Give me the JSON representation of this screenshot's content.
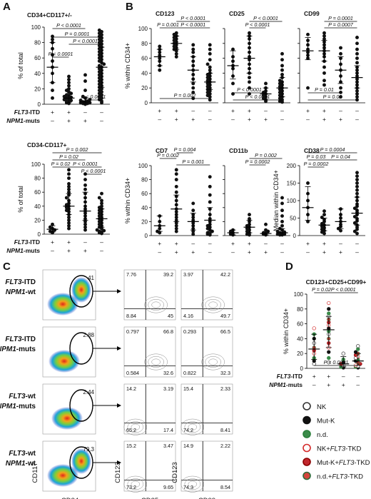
{
  "panel_letters": {
    "a": "A",
    "b": "B",
    "c": "C",
    "d": "D"
  },
  "row_labels": {
    "flt3": "FLT3",
    "itd": "-ITD",
    "npm1": "NPM1",
    "muts": "-muts",
    "plus": "+",
    "minus": "–"
  },
  "groups_signs": {
    "flt3_itd": [
      "+",
      "+",
      "–",
      "–"
    ],
    "npm1_muts": [
      "–",
      "+",
      "+",
      "–"
    ]
  },
  "chart_data": [
    {
      "id": "a_top",
      "type": "scatter",
      "title": "CD34+CD117+/-",
      "ylabel": "% of total",
      "ylim": [
        0,
        100
      ],
      "yticks": [
        0,
        20,
        40,
        60,
        80,
        100
      ],
      "groups": [
        {
          "median": 48,
          "iqr": [
            28,
            80
          ],
          "values": [
            8,
            18,
            28,
            40,
            48,
            56,
            64,
            72,
            80,
            84,
            88
          ]
        },
        {
          "median": 8,
          "iqr": [
            2,
            14
          ],
          "values": [
            1,
            2,
            3,
            4,
            5,
            6,
            7,
            8,
            9,
            10,
            11,
            12,
            14,
            16,
            18,
            20,
            24,
            28,
            32,
            36
          ]
        },
        {
          "median": 3,
          "iqr": [
            1,
            8
          ],
          "values": [
            0,
            1,
            1,
            2,
            2,
            3,
            3,
            4,
            5,
            6,
            8,
            10,
            18,
            30,
            38
          ]
        },
        {
          "median": 48,
          "iqr": [
            22,
            74
          ],
          "values": [
            2,
            4,
            6,
            8,
            10,
            12,
            14,
            16,
            18,
            20,
            22,
            24,
            26,
            28,
            30,
            32,
            34,
            36,
            38,
            40,
            42,
            44,
            46,
            48,
            50,
            52,
            54,
            56,
            58,
            60,
            62,
            64,
            66,
            68,
            70,
            72,
            74,
            76,
            78,
            80,
            82,
            84,
            86,
            88,
            90,
            92,
            94,
            96
          ]
        }
      ],
      "p_values": [
        "P < 0.0001",
        "P = 0.0001",
        "P < 0.0001",
        "P < 0.0001",
        "P < 0.0001"
      ]
    },
    {
      "id": "a_bottom",
      "type": "scatter",
      "title": "CD34-CD117+",
      "ylabel": "% of total",
      "ylim": [
        0,
        100
      ],
      "yticks": [
        0,
        20,
        40,
        60,
        80,
        100
      ],
      "groups": [
        {
          "median": 7,
          "iqr": [
            3,
            12
          ],
          "values": [
            2,
            3,
            4,
            6,
            8,
            10,
            14
          ]
        },
        {
          "median": 40,
          "iqr": [
            28,
            58
          ],
          "values": [
            8,
            12,
            16,
            20,
            24,
            28,
            32,
            34,
            36,
            38,
            40,
            42,
            44,
            48,
            52,
            56,
            60,
            64,
            68,
            72,
            80,
            86,
            92
          ]
        },
        {
          "median": 33,
          "iqr": [
            20,
            60
          ],
          "values": [
            6,
            10,
            14,
            18,
            22,
            26,
            30,
            33,
            36,
            40,
            46,
            52,
            58,
            64,
            70,
            78,
            86
          ]
        },
        {
          "median": 22,
          "iqr": [
            10,
            36
          ],
          "values": [
            1,
            2,
            3,
            4,
            5,
            6,
            8,
            10,
            12,
            14,
            16,
            18,
            20,
            22,
            24,
            26,
            28,
            30,
            32,
            34,
            36,
            38,
            40,
            44,
            48,
            52,
            58
          ]
        }
      ],
      "p_values": [
        "P = 0.002",
        "P = 0.02",
        "P = 0.02",
        "P < 0.0001",
        "P < 0.0001"
      ]
    },
    {
      "id": "b_cd123",
      "type": "scatter",
      "title": "CD123",
      "ylabel": "% within CD34+",
      "ylim": [
        0,
        100
      ],
      "yticks": [
        0,
        20,
        40,
        60,
        80,
        100
      ],
      "groups": [
        {
          "median": 62,
          "iqr": [
            50,
            72
          ],
          "values": [
            44,
            50,
            56,
            60,
            64,
            68,
            72,
            76
          ]
        },
        {
          "median": 80,
          "iqr": [
            72,
            90
          ],
          "values": [
            62,
            66,
            70,
            72,
            74,
            76,
            78,
            80,
            82,
            84,
            86,
            88,
            90,
            92,
            94
          ]
        },
        {
          "median": 44,
          "iqr": [
            28,
            62
          ],
          "values": [
            6,
            14,
            20,
            26,
            32,
            38,
            44,
            50,
            56,
            62,
            68,
            72,
            78
          ]
        },
        {
          "median": 28,
          "iqr": [
            18,
            40
          ],
          "values": [
            4,
            8,
            10,
            12,
            14,
            16,
            18,
            20,
            22,
            24,
            26,
            28,
            30,
            32,
            34,
            36,
            38,
            40,
            44,
            48,
            52,
            58,
            66,
            72,
            78
          ]
        }
      ],
      "p_values": [
        "P < 0.0001",
        "P = 0.001",
        "P < 0.0001",
        "P = 0.002"
      ]
    },
    {
      "id": "b_cd25",
      "type": "scatter",
      "title": "CD25",
      "ylim": [
        0,
        100
      ],
      "groups": [
        {
          "median": 50,
          "iqr": [
            32,
            70
          ],
          "values": [
            12,
            26,
            36,
            46,
            50,
            56,
            62,
            72
          ]
        },
        {
          "median": 60,
          "iqr": [
            40,
            90
          ],
          "values": [
            12,
            20,
            28,
            34,
            40,
            46,
            52,
            58,
            62,
            68,
            74,
            80,
            86,
            90,
            94
          ]
        },
        {
          "median": 12,
          "iqr": [
            4,
            20
          ],
          "values": [
            2,
            4,
            6,
            8,
            10,
            12,
            14,
            16,
            20,
            26
          ]
        },
        {
          "median": 20,
          "iqr": [
            8,
            34
          ],
          "values": [
            1,
            2,
            4,
            6,
            8,
            10,
            12,
            14,
            16,
            18,
            20,
            22,
            24,
            26,
            28,
            30,
            34,
            38,
            44,
            50,
            58,
            66
          ]
        }
      ],
      "p_values": [
        "P < 0.0001",
        "P < 0.0001",
        "P < 0.0001",
        "P < 0.0001"
      ]
    },
    {
      "id": "b_cd99",
      "type": "scatter",
      "title": "CD99",
      "ylim": [
        0,
        100
      ],
      "groups": [
        {
          "median": 70,
          "iqr": [
            58,
            88
          ],
          "values": [
            20,
            60,
            64,
            68,
            72,
            78,
            84,
            92
          ]
        },
        {
          "median": 70,
          "iqr": [
            56,
            84
          ],
          "values": [
            24,
            30,
            40,
            48,
            56,
            62,
            66,
            70,
            74,
            78,
            82,
            86,
            90,
            94
          ]
        },
        {
          "median": 44,
          "iqr": [
            26,
            62
          ],
          "values": [
            8,
            14,
            20,
            28,
            36,
            44,
            52,
            60,
            66,
            74
          ]
        },
        {
          "median": 34,
          "iqr": [
            20,
            50
          ],
          "values": [
            4,
            8,
            12,
            16,
            20,
            24,
            28,
            32,
            36,
            40,
            44,
            48,
            54,
            60,
            66,
            72,
            80,
            88
          ]
        }
      ],
      "p_values": [
        "P = 0.0001",
        "P = 0.0007",
        "P = 0.01",
        "P = 0.02"
      ]
    },
    {
      "id": "b_cd7",
      "type": "scatter",
      "title": "CD7",
      "ylabel": "% within CD34+",
      "ylim": [
        0,
        100
      ],
      "yticks": [
        0,
        20,
        40,
        60,
        80,
        100
      ],
      "groups": [
        {
          "median": 14,
          "iqr": [
            6,
            28
          ],
          "values": [
            4,
            6,
            10,
            14,
            20,
            28
          ]
        },
        {
          "median": 38,
          "iqr": [
            20,
            58
          ],
          "values": [
            6,
            10,
            14,
            18,
            22,
            26,
            30,
            34,
            38,
            44,
            50,
            56,
            62,
            70,
            80,
            88,
            94
          ]
        },
        {
          "median": 20,
          "iqr": [
            8,
            32
          ],
          "values": [
            2,
            6,
            10,
            14,
            18,
            22,
            26,
            30,
            36,
            46
          ]
        },
        {
          "median": 22,
          "iqr": [
            6,
            40
          ],
          "values": [
            1,
            2,
            3,
            4,
            6,
            8,
            10,
            12,
            14,
            16,
            20,
            24,
            30,
            38,
            48,
            58,
            70,
            84
          ]
        }
      ],
      "p_values": [
        "P = 0.002",
        "P = 0.004",
        "P = 0.001"
      ]
    },
    {
      "id": "b_cd11b",
      "type": "scatter",
      "title": "CD11b",
      "ylim": [
        0,
        100
      ],
      "groups": [
        {
          "median": 4,
          "iqr": [
            1,
            8
          ],
          "values": [
            1,
            2,
            4,
            6,
            8
          ]
        },
        {
          "median": 12,
          "iqr": [
            4,
            22
          ],
          "values": [
            1,
            2,
            4,
            6,
            8,
            10,
            12,
            14,
            16,
            20,
            24,
            30
          ]
        },
        {
          "median": 3,
          "iqr": [
            1,
            6
          ],
          "values": [
            1,
            2,
            3,
            4,
            6,
            8,
            16
          ]
        },
        {
          "median": 4,
          "iqr": [
            1,
            10
          ],
          "values": [
            1,
            1,
            2,
            2,
            3,
            4,
            5,
            6,
            8,
            10,
            14,
            20,
            28,
            36,
            46,
            54
          ]
        }
      ],
      "p_values": [
        "P = 0.002",
        "P = 0.0002"
      ]
    },
    {
      "id": "b_cd38",
      "type": "scatter",
      "title": "CD38",
      "ylabel": "Median within CD34+",
      "ylim": [
        0,
        200
      ],
      "yticks": [
        0,
        50,
        100,
        150,
        200
      ],
      "groups": [
        {
          "median": 80,
          "iqr": [
            44,
            140
          ],
          "values": [
            40,
            60,
            80,
            100,
            120,
            150
          ]
        },
        {
          "median": 30,
          "iqr": [
            14,
            50
          ],
          "values": [
            6,
            10,
            14,
            18,
            22,
            26,
            30,
            34,
            40,
            46,
            52,
            60,
            70
          ]
        },
        {
          "median": 40,
          "iqr": [
            20,
            76
          ],
          "values": [
            14,
            20,
            26,
            32,
            40,
            50,
            60,
            76
          ]
        },
        {
          "median": 64,
          "iqr": [
            30,
            110
          ],
          "values": [
            6,
            12,
            18,
            24,
            30,
            36,
            42,
            48,
            54,
            60,
            66,
            72,
            78,
            84,
            90,
            100,
            110,
            120,
            130,
            140,
            150,
            160,
            170,
            180
          ]
        }
      ],
      "p_values": [
        "P = 0.0004",
        "P = 0.03",
        "P = 0.04",
        "P = 0.0002"
      ]
    },
    {
      "id": "d",
      "type": "scatter",
      "title": "CD123+CD25+CD99+",
      "ylabel": "% within CD34+",
      "ylim": [
        0,
        100
      ],
      "yticks": [
        0,
        20,
        40,
        60,
        80,
        100
      ],
      "groups": [
        {
          "median": 26,
          "iqr": [
            12,
            46
          ],
          "values": [
            6,
            10,
            14,
            20,
            24,
            28,
            34,
            40,
            46,
            54
          ]
        },
        {
          "median": 52,
          "iqr": [
            28,
            70
          ],
          "values": [
            8,
            14,
            22,
            28,
            34,
            40,
            46,
            50,
            54,
            58,
            62,
            66,
            70,
            74,
            80,
            88
          ]
        },
        {
          "median": 6,
          "iqr": [
            2,
            16
          ],
          "values": [
            1,
            2,
            4,
            6,
            8,
            12,
            20
          ]
        },
        {
          "median": 10,
          "iqr": [
            4,
            20
          ],
          "values": [
            1,
            2,
            3,
            4,
            6,
            8,
            10,
            12,
            14,
            16,
            18,
            20,
            22,
            26,
            30
          ]
        }
      ],
      "p_values": [
        "P = 0.02",
        "P < 0.0001",
        "P < 0.0001"
      ],
      "legend": [
        {
          "label": "NK",
          "stroke": "#333333",
          "fill": "#ffffff"
        },
        {
          "label": "Mut-K",
          "stroke": "#111111",
          "fill": "#111111"
        },
        {
          "label": "n.d.",
          "stroke": "#2a7f3a",
          "fill": "#3b8c4a"
        },
        {
          "label": "NK+FLT3-TKD",
          "stroke": "#d42a2a",
          "fill": "#ffffff"
        },
        {
          "label": "Mut-K+FLT3-TKD",
          "stroke": "#8b0000",
          "fill": "#c1272d"
        },
        {
          "label": "n.d.+FLT3-TKD",
          "stroke": "#2e6b3a",
          "fill": "#d4453c"
        }
      ]
    }
  ],
  "facs": {
    "rows": [
      {
        "label1": "FLT3-ITD",
        "label2": "NPM1-wt",
        "gate": "41",
        "cd25": [
          "7.76",
          "39.2",
          "8.84",
          "45"
        ],
        "cd99": [
          "3.97",
          "42.2",
          "4.16",
          "49.7"
        ]
      },
      {
        "label1": "FLT3-ITD",
        "label2": "NPM1-muts",
        "gate": "2.88",
        "cd25": [
          "0.797",
          "66.8",
          "0.584",
          "32.6"
        ],
        "cd99": [
          "0.293",
          "66.5",
          "0.822",
          "32.3"
        ]
      },
      {
        "label1": "FLT3-wt",
        "label2": "NPM1-muts",
        "gate": "2.44",
        "cd25": [
          "14.2",
          "3.19",
          "65.2",
          "17.4"
        ],
        "cd99": [
          "15.4",
          "2.33",
          "74.2",
          "8.41"
        ]
      },
      {
        "label1": "FLT3-wt",
        "label2": "NPM1-wt",
        "gate": "79.3",
        "cd25": [
          "15.2",
          "3.47",
          "73.2",
          "9.65"
        ],
        "cd99": [
          "14.9",
          "2.22",
          "74.3",
          "8.54"
        ]
      }
    ],
    "axes": {
      "cd117": "CD117",
      "cd34": "CD34",
      "cd25": "CD25",
      "cd99": "CD99",
      "cd123": "CD123"
    }
  },
  "colors": {
    "text": "#111111",
    "line": "#000000",
    "gate": "#000000"
  }
}
